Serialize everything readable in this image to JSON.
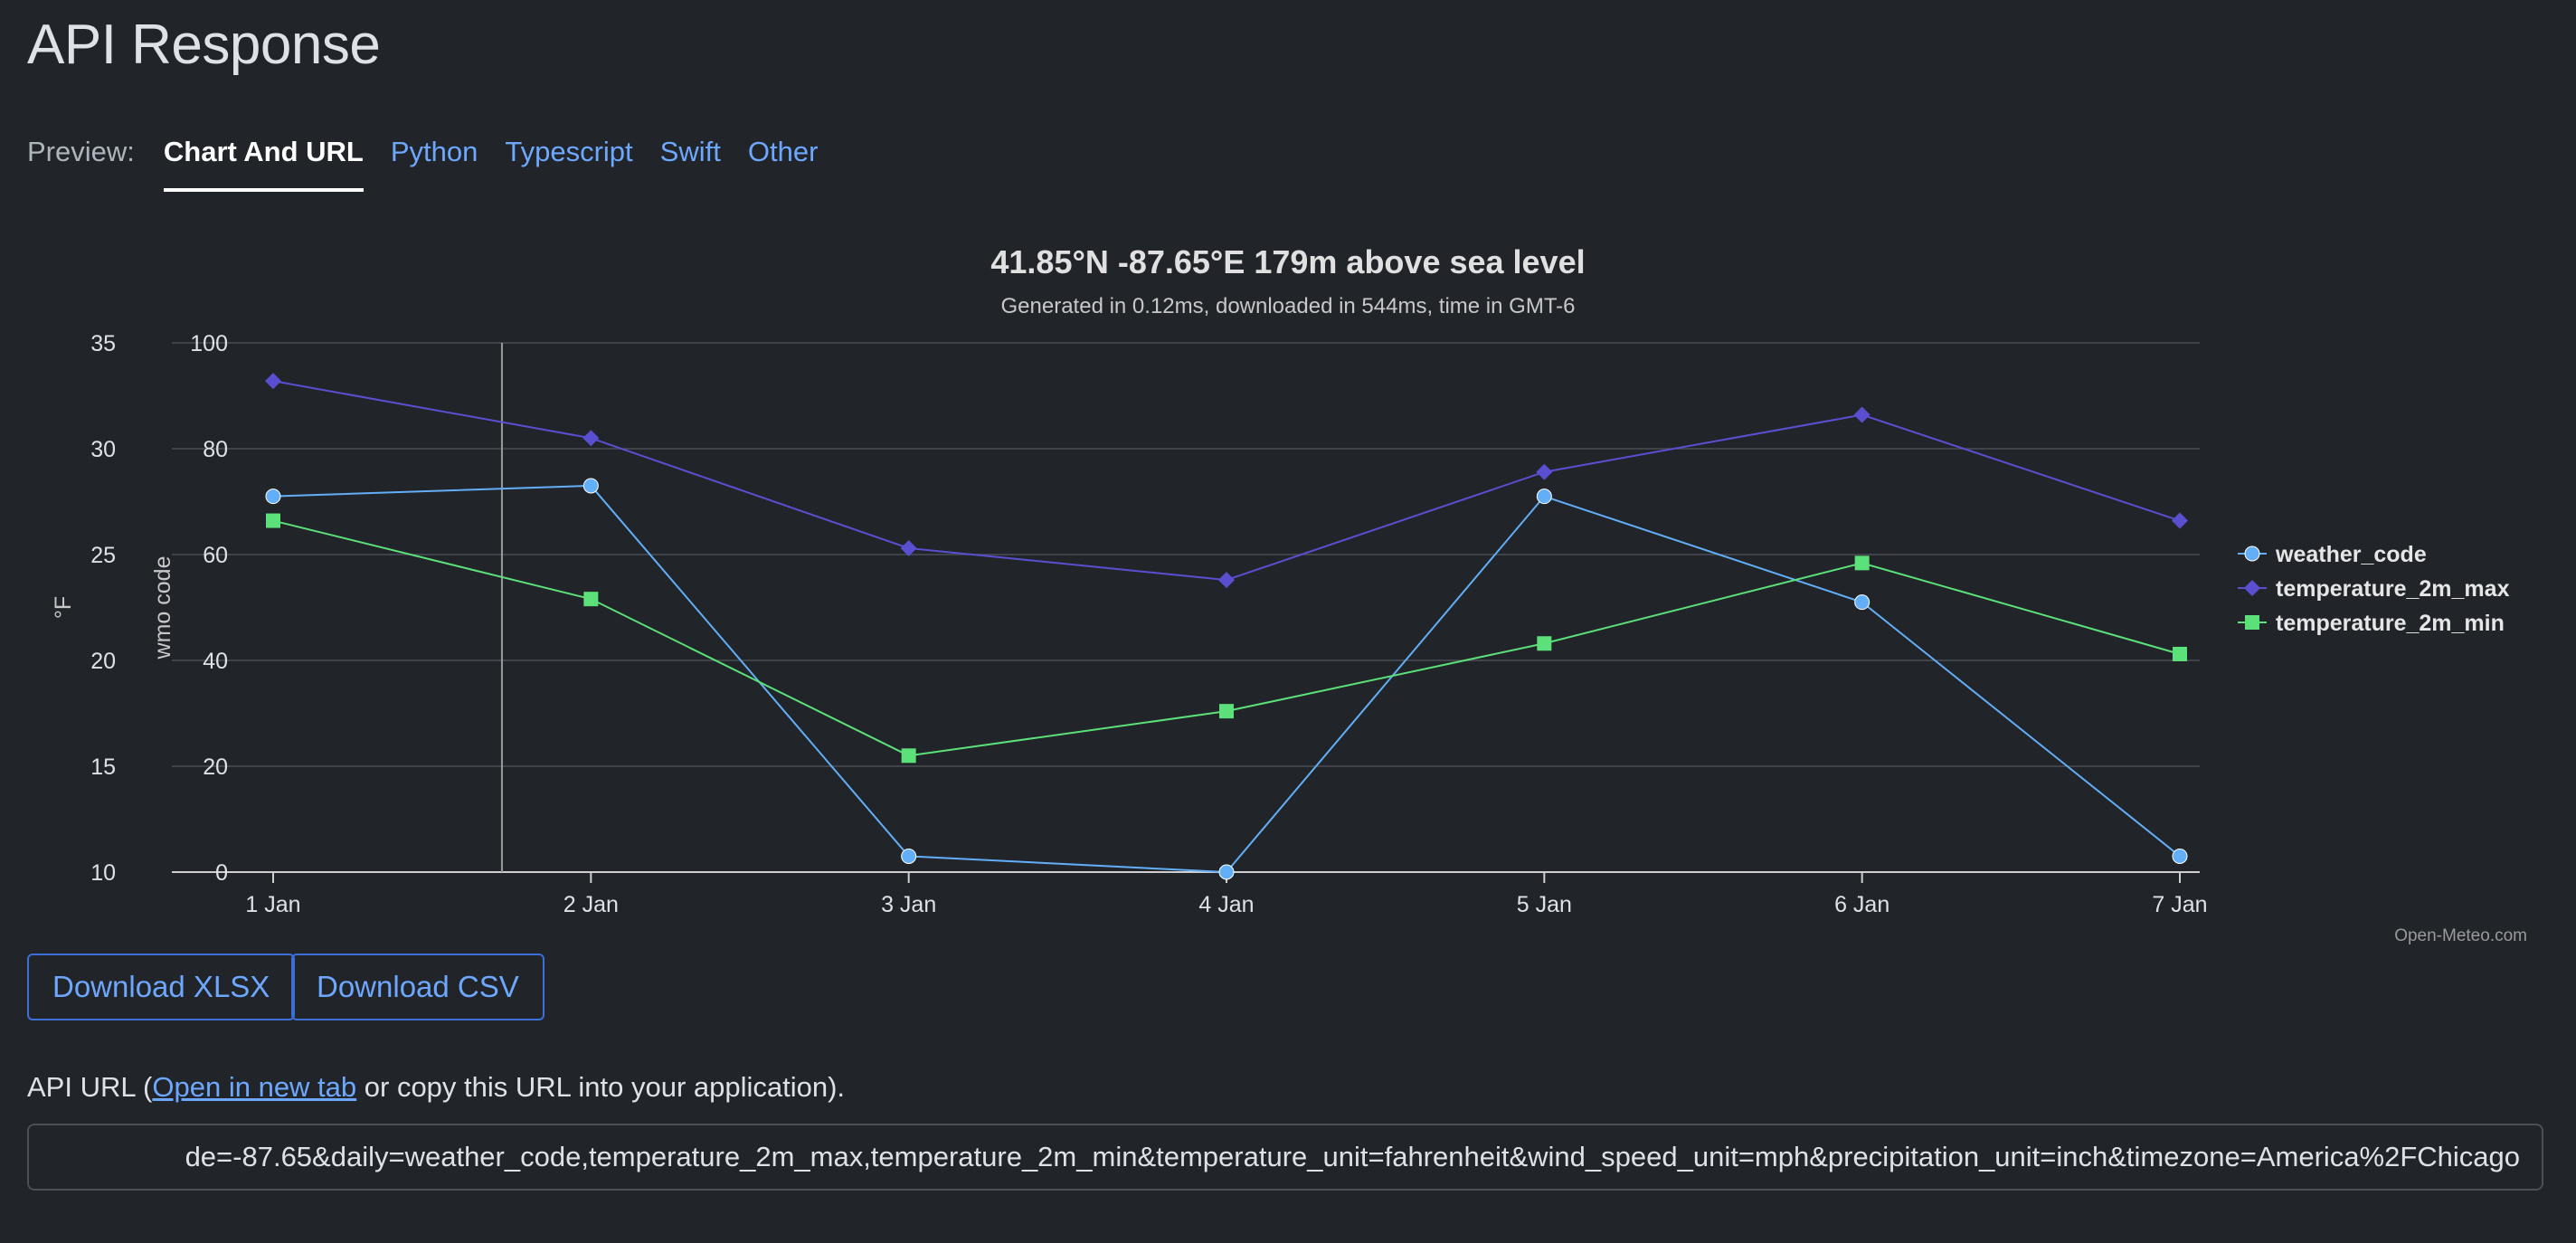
{
  "page": {
    "title": "API Response"
  },
  "tabs": {
    "label": "Preview:",
    "items": [
      {
        "label": "Chart And URL",
        "active": true
      },
      {
        "label": "Python",
        "active": false
      },
      {
        "label": "Typescript",
        "active": false
      },
      {
        "label": "Swift",
        "active": false
      },
      {
        "label": "Other",
        "active": false
      }
    ]
  },
  "chart_data": {
    "type": "line",
    "title": "41.85°N -87.65°E 179m above sea level",
    "subtitle": "Generated in 0.12ms, downloaded in 544ms, time in GMT-6",
    "categories": [
      "1 Jan",
      "2 Jan",
      "3 Jan",
      "4 Jan",
      "5 Jan",
      "6 Jan",
      "7 Jan"
    ],
    "y_axes": [
      {
        "id": "temp",
        "label": "°F",
        "range": [
          10,
          35
        ],
        "ticks": [
          10,
          15,
          20,
          25,
          30,
          35
        ]
      },
      {
        "id": "wmo",
        "label": "wmo code",
        "range": [
          0,
          100
        ],
        "ticks": [
          0,
          20,
          40,
          60,
          80,
          100
        ]
      }
    ],
    "series": [
      {
        "name": "weather_code",
        "axis": "wmo",
        "color": "#62aef7",
        "marker": "circle",
        "values": [
          71,
          73,
          3,
          0,
          71,
          51,
          3
        ]
      },
      {
        "name": "temperature_2m_max",
        "axis": "temp",
        "color": "#5a4fd1",
        "marker": "diamond",
        "values": [
          33.2,
          30.5,
          25.3,
          23.8,
          28.9,
          31.6,
          26.6
        ]
      },
      {
        "name": "temperature_2m_min",
        "axis": "temp",
        "color": "#5ce07a",
        "marker": "square",
        "values": [
          26.6,
          22.9,
          15.5,
          17.6,
          20.8,
          24.6,
          20.3
        ]
      }
    ],
    "grid": true,
    "legend_position": "right",
    "crosshair_category_fraction": 0.72,
    "credit": "Open-Meteo.com"
  },
  "buttons": {
    "xlsx": "Download XLSX",
    "csv": "Download CSV"
  },
  "api": {
    "label_prefix": "API URL (",
    "link_text": "Open in new tab",
    "label_suffix": " or copy this URL into your application).",
    "url": "de=-87.65&daily=weather_code,temperature_2m_max,temperature_2m_min&temperature_unit=fahrenheit&wind_speed_unit=mph&precipitation_unit=inch&timezone=America%2FChicago"
  }
}
